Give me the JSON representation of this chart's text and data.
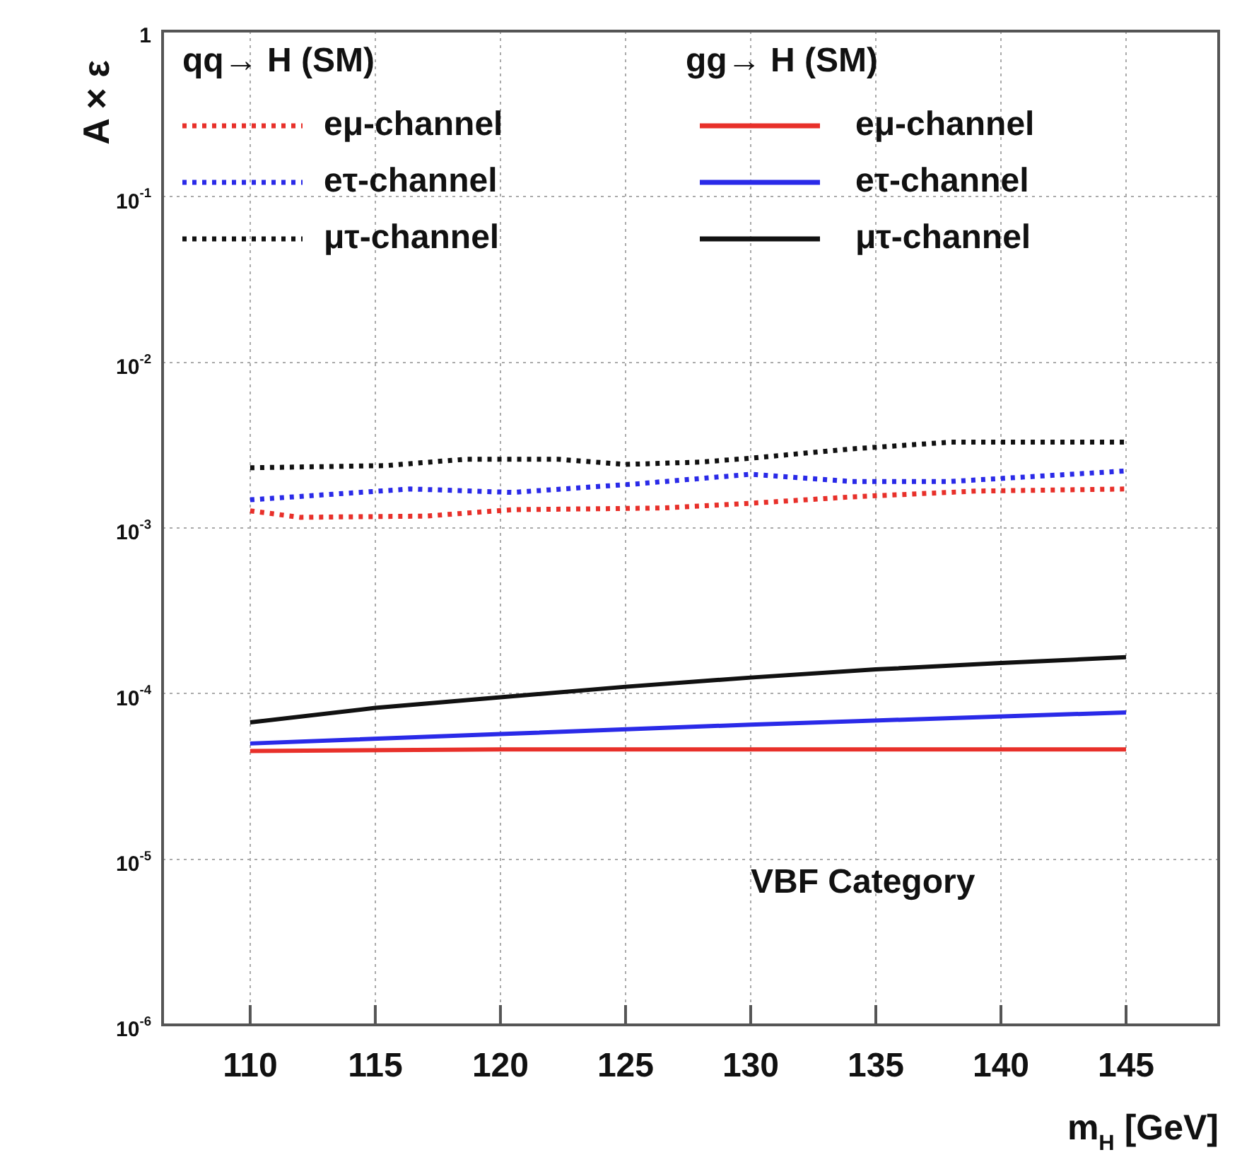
{
  "chart_data": {
    "type": "line",
    "xlabel": "m$_{H}$ [GeV]",
    "ylabel": "A × ε",
    "annotations": [
      "qq→ H (SM)",
      "gg→ H (SM)",
      "VBF Category"
    ],
    "log": "y",
    "grid": true,
    "legend": "top",
    "marker": "none",
    "xlim": [
      106.5,
      148.7
    ],
    "xticks": [
      110,
      115,
      120,
      125,
      130,
      135,
      140,
      145
    ],
    "ylim": [
      1e-06,
      1
    ],
    "yticks": [
      {
        "value": 1e-06,
        "label": "10$^{-6}$"
      },
      {
        "value": 1e-05,
        "label": "10$^{-5}$"
      },
      {
        "value": 0.0001,
        "label": "10$^{-4}$"
      },
      {
        "value": 0.001,
        "label": "10$^{-3}$"
      },
      {
        "value": 0.01,
        "label": "10$^{-2}$"
      },
      {
        "value": 0.1,
        "label": "10$^{-1}$"
      },
      1
    ],
    "series": [
      {
        "name": "eμ-channel",
        "color": "#e8302a",
        "line_style": "dotted",
        "x": [
          110,
          112,
          117,
          120.5,
          126.5,
          130,
          134,
          139,
          145
        ],
        "values": [
          0.00127,
          0.00116,
          0.00118,
          0.00129,
          0.00132,
          0.00141,
          0.00154,
          0.00167,
          0.00172
        ]
      },
      {
        "name": "eτ-channel",
        "color": "#2a2ae8",
        "line_style": "dotted",
        "x": [
          110,
          116.4,
          120.5,
          125.5,
          130,
          134,
          138,
          145
        ],
        "values": [
          0.00148,
          0.00172,
          0.00164,
          0.00185,
          0.00211,
          0.00191,
          0.00191,
          0.00221
        ]
      },
      {
        "name": "μτ-channel",
        "color": "#111111",
        "line_style": "dotted",
        "x": [
          110,
          115.4,
          118.6,
          122.3,
          125,
          128,
          130,
          134,
          138,
          145
        ],
        "values": [
          0.00231,
          0.00238,
          0.0026,
          0.0026,
          0.00242,
          0.0025,
          0.00264,
          0.003,
          0.0033,
          0.0033
        ]
      },
      {
        "name": "eμ-channel",
        "color": "#e8302a",
        "line_style": "solid",
        "x": [
          110,
          120,
          145
        ],
        "values": [
          4.5e-05,
          4.6e-05,
          4.6e-05
        ]
      },
      {
        "name": "eτ-channel",
        "color": "#2a2ae8",
        "line_style": "solid",
        "x": [
          110,
          120,
          130,
          145
        ],
        "values": [
          5e-05,
          5.7e-05,
          6.5e-05,
          7.7e-05
        ]
      },
      {
        "name": "μτ-channel",
        "color": "#111111",
        "line_style": "solid",
        "x": [
          110,
          115,
          120,
          125,
          130,
          135,
          140,
          145
        ],
        "values": [
          6.7e-05,
          8.2e-05,
          9.5e-05,
          0.00011,
          0.000125,
          0.00014,
          0.000153,
          0.000166
        ]
      }
    ]
  }
}
